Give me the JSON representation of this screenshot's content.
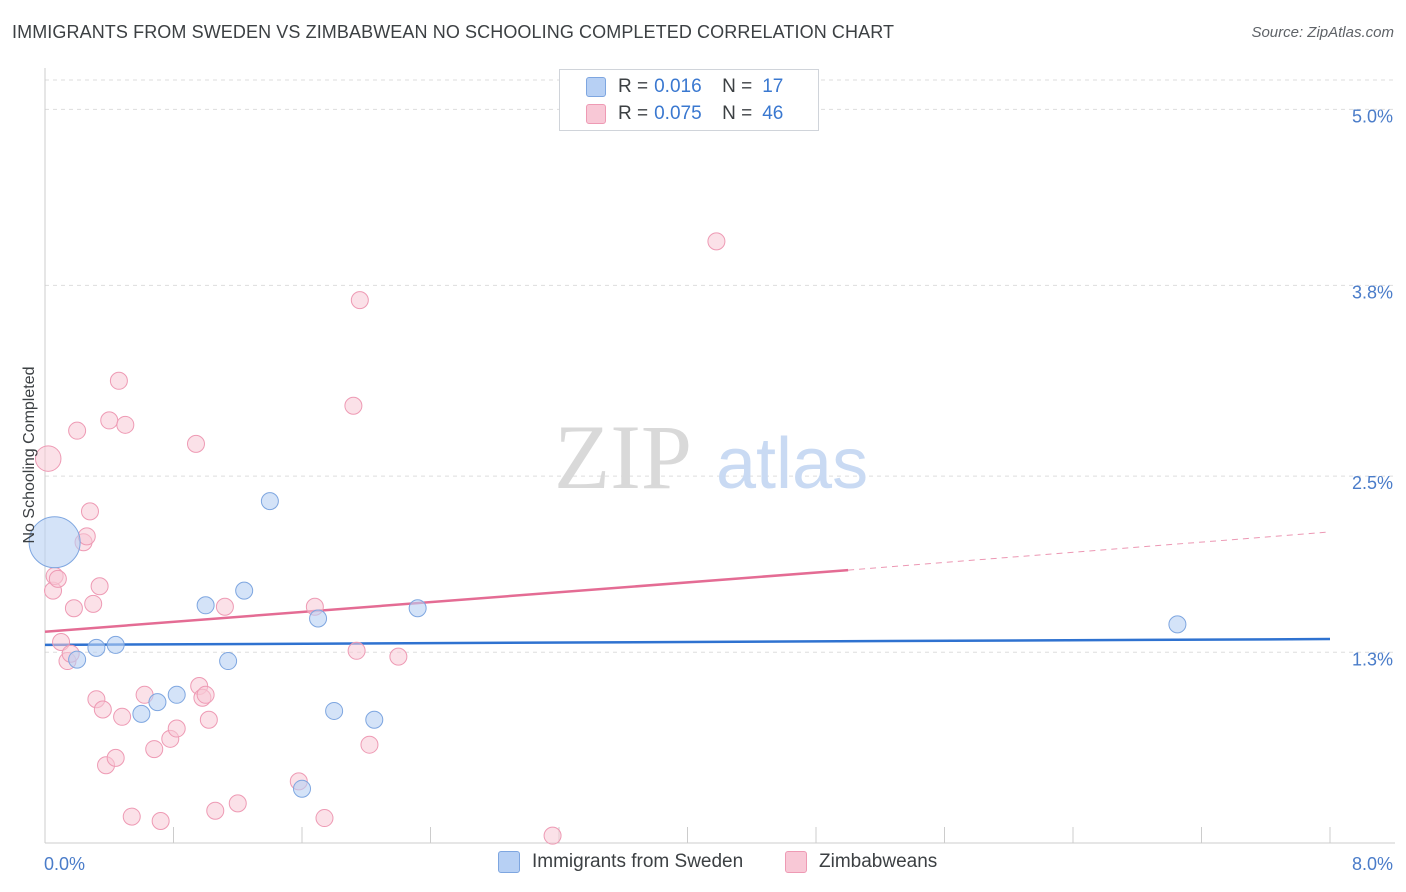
{
  "header": {
    "title": "IMMIGRANTS FROM SWEDEN VS ZIMBABWEAN NO SCHOOLING COMPLETED CORRELATION CHART",
    "source": "Source: ZipAtlas.com"
  },
  "watermark": {
    "zip": "ZIP",
    "atlas": "atlas"
  },
  "legend": {
    "rows": [
      {
        "r_label": "R = ",
        "r_value": "0.016",
        "n_label": "N = ",
        "n_value": "17"
      },
      {
        "r_label": "R = ",
        "r_value": "0.075",
        "n_label": "N = ",
        "n_value": "46"
      }
    ]
  },
  "colors": {
    "sweden_fill": "#b7d0f4",
    "sweden_stroke": "#7ea6e0",
    "sweden_line": "#2f72d0",
    "zim_fill": "#f8c8d6",
    "zim_stroke": "#ee9ab4",
    "zim_line": "#e46c94",
    "tick_text": "#4a7cc9",
    "grid": "#dddddd"
  },
  "chart_data": {
    "type": "scatter",
    "title": "IMMIGRANTS FROM SWEDEN VS ZIMBABWEAN NO SCHOOLING COMPLETED CORRELATION CHART",
    "xlabel": "",
    "ylabel": "No Schooling Completed",
    "xlim": [
      0,
      8
    ],
    "ylim": [
      0,
      5.2
    ],
    "x_tick_labels": [
      "0.0%",
      "8.0%"
    ],
    "y_ticks": [
      1.3,
      2.5,
      3.8,
      5.0
    ],
    "y_tick_labels": [
      "1.3%",
      "2.5%",
      "3.8%",
      "5.0%"
    ],
    "series": [
      {
        "name": "Immigrants from Sweden",
        "points": [
          [
            0.06,
            2.05,
            3
          ],
          [
            0.2,
            1.25,
            1
          ],
          [
            0.32,
            1.33,
            1
          ],
          [
            0.44,
            1.35,
            1
          ],
          [
            0.6,
            0.88,
            1
          ],
          [
            0.7,
            0.96,
            1
          ],
          [
            0.82,
            1.01,
            1
          ],
          [
            1.0,
            1.62,
            1
          ],
          [
            1.14,
            1.24,
            1
          ],
          [
            1.24,
            1.72,
            1
          ],
          [
            1.4,
            2.33,
            1
          ],
          [
            1.6,
            0.37,
            1
          ],
          [
            1.7,
            1.53,
            1
          ],
          [
            1.8,
            0.9,
            1
          ],
          [
            2.05,
            0.84,
            1
          ],
          [
            2.32,
            1.6,
            1
          ],
          [
            7.05,
            1.49,
            1
          ]
        ],
        "trend": {
          "x": [
            0.0,
            8.0
          ],
          "y": [
            1.35,
            1.39
          ]
        }
      },
      {
        "name": "Zimbabweans",
        "points": [
          [
            0.02,
            2.62,
            1.5
          ],
          [
            0.05,
            1.72,
            1
          ],
          [
            0.06,
            1.82,
            1
          ],
          [
            0.08,
            1.8,
            1
          ],
          [
            0.1,
            1.37,
            1
          ],
          [
            0.14,
            1.24,
            1
          ],
          [
            0.16,
            1.29,
            1
          ],
          [
            0.18,
            1.6,
            1
          ],
          [
            0.2,
            2.81,
            1
          ],
          [
            0.24,
            2.05,
            1
          ],
          [
            0.26,
            2.09,
            1
          ],
          [
            0.28,
            2.26,
            1
          ],
          [
            0.3,
            1.63,
            1
          ],
          [
            0.32,
            0.98,
            1
          ],
          [
            0.34,
            1.75,
            1
          ],
          [
            0.36,
            0.91,
            1
          ],
          [
            0.38,
            0.53,
            1
          ],
          [
            0.4,
            2.88,
            1
          ],
          [
            0.44,
            0.58,
            1
          ],
          [
            0.46,
            3.15,
            1
          ],
          [
            0.48,
            0.86,
            1
          ],
          [
            0.5,
            2.85,
            1
          ],
          [
            0.54,
            0.18,
            1
          ],
          [
            0.62,
            1.01,
            1
          ],
          [
            0.68,
            0.64,
            1
          ],
          [
            0.72,
            0.15,
            1
          ],
          [
            0.78,
            0.71,
            1
          ],
          [
            0.82,
            0.78,
            1
          ],
          [
            0.94,
            2.72,
            1
          ],
          [
            0.96,
            1.07,
            1
          ],
          [
            0.98,
            0.99,
            1
          ],
          [
            1.0,
            1.01,
            1
          ],
          [
            1.02,
            0.84,
            1
          ],
          [
            1.06,
            0.22,
            1
          ],
          [
            1.12,
            1.61,
            1
          ],
          [
            1.2,
            0.27,
            1
          ],
          [
            1.58,
            0.42,
            1
          ],
          [
            1.68,
            1.61,
            1
          ],
          [
            1.74,
            0.17,
            1
          ],
          [
            1.92,
            2.98,
            1
          ],
          [
            1.94,
            1.31,
            1
          ],
          [
            1.96,
            3.7,
            1
          ],
          [
            2.02,
            0.67,
            1
          ],
          [
            2.2,
            1.27,
            1
          ],
          [
            3.16,
            0.05,
            1
          ],
          [
            4.18,
            4.1,
            1
          ]
        ],
        "trend": {
          "x": [
            0.0,
            5.0
          ],
          "y": [
            1.44,
            1.86
          ]
        },
        "trend_dashed": {
          "x": [
            5.0,
            8.0
          ],
          "y": [
            1.86,
            2.12
          ]
        }
      }
    ]
  },
  "bottom_legend": {
    "items": [
      {
        "label": "Immigrants from Sweden"
      },
      {
        "label": "Zimbabweans"
      }
    ]
  }
}
